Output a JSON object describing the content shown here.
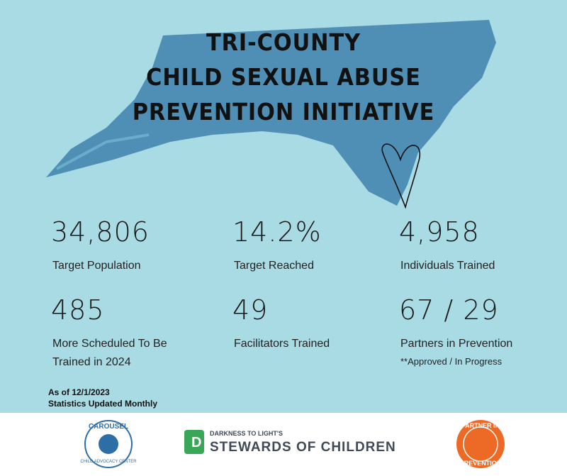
{
  "header": {
    "title_lines": [
      "TRI-COUNTY",
      "CHILD SEXUAL ABUSE",
      "PREVENTION INITIATIVE"
    ]
  },
  "stats": [
    {
      "value": "34,806",
      "label_lines": [
        "Target Population"
      ]
    },
    {
      "value": "14.2%",
      "label_lines": [
        "Target Reached"
      ]
    },
    {
      "value": "4,958",
      "label_lines": [
        "Individuals Trained"
      ]
    },
    {
      "value": "485",
      "label_lines": [
        "More Scheduled To Be",
        "Trained in 2024"
      ]
    },
    {
      "value": "49",
      "label_lines": [
        "Facilitators Trained"
      ]
    },
    {
      "value": "67 / 29",
      "label_lines": [
        "Partners in Prevention"
      ],
      "note": "**Approved / In Progress"
    }
  ],
  "footer_note": [
    "As of 12/1/2023",
    "Statistics Updated Monthly"
  ],
  "logos": {
    "carousel": [
      "CAROUSEL",
      "CHILD ADVOCACY CENTER"
    ],
    "stewards": [
      "DARKNESS TO LIGHT'S",
      "STEWARDS OF CHILDREN"
    ],
    "partner": [
      "PARTNER IN",
      "PREVENTION"
    ]
  }
}
